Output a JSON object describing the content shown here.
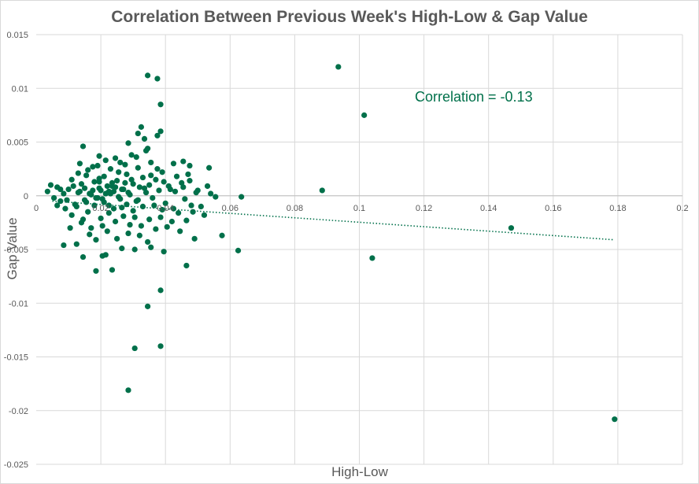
{
  "chart_data": {
    "type": "scatter",
    "title": "Correlation Between Previous Week's High-Low & Gap Value",
    "xlabel": "High-Low",
    "ylabel": "Gap Value",
    "xlim": [
      0,
      0.2
    ],
    "ylim": [
      -0.025,
      0.015
    ],
    "x_ticks": [
      0,
      0.02,
      0.04,
      0.06,
      0.08,
      0.1,
      0.12,
      0.14,
      0.16,
      0.18,
      0.2
    ],
    "y_ticks": [
      0.015,
      0.01,
      0.005,
      0,
      -0.005,
      -0.01,
      -0.015,
      -0.02,
      -0.025
    ],
    "x_tick_labels": [
      "0",
      "0.02",
      "0.04",
      "0.06",
      "0.08",
      "0.1",
      "0.12",
      "0.14",
      "0.16",
      "0.18",
      "0.2"
    ],
    "y_tick_labels": [
      "0.015",
      "0.01",
      "0.005",
      "0",
      "-0.005",
      "-0.01",
      "-0.015",
      "-0.02",
      "-0.025"
    ],
    "grid": true,
    "annotation": "Correlation = -0.13",
    "trendline": {
      "style": "dotted",
      "x": [
        0.005,
        0.179
      ],
      "y": [
        -0.0005,
        -0.0041
      ]
    },
    "marker_color": "#00704a",
    "trendline_color": "#00704a",
    "series": [
      {
        "points": [
          [
            0.0035,
            0.0004
          ],
          [
            0.0045,
            0.001
          ],
          [
            0.0055,
            -0.0002
          ],
          [
            0.0065,
            0.0008
          ],
          [
            0.0075,
            -0.0005
          ],
          [
            0.0085,
            0.0002
          ],
          [
            0.009,
            -0.0012
          ],
          [
            0.01,
            0.0006
          ],
          [
            0.011,
            -0.0018
          ],
          [
            0.011,
            0.0015
          ],
          [
            0.012,
            -0.0008
          ],
          [
            0.013,
            0.0003
          ],
          [
            0.013,
            0.0021
          ],
          [
            0.014,
            -0.0025
          ],
          [
            0.014,
            0.0011
          ],
          [
            0.015,
            -0.0004
          ],
          [
            0.015,
            0.0007
          ],
          [
            0.016,
            -0.0015
          ],
          [
            0.016,
            0.0024
          ],
          [
            0.017,
            0.0001
          ],
          [
            0.017,
            -0.003
          ],
          [
            0.018,
            0.0013
          ],
          [
            0.018,
            -0.0009
          ],
          [
            0.019,
            0.0028
          ],
          [
            0.019,
            -0.0002
          ],
          [
            0.02,
            0.0005
          ],
          [
            0.02,
            -0.0021
          ],
          [
            0.021,
            0.0018
          ],
          [
            0.021,
            -0.0006
          ],
          [
            0.022,
            0.0009
          ],
          [
            0.022,
            -0.0033
          ],
          [
            0.023,
            0.0002
          ],
          [
            0.023,
            0.0025
          ],
          [
            0.024,
            -0.0012
          ],
          [
            0.024,
            0.0004
          ],
          [
            0.025,
            -0.004
          ],
          [
            0.025,
            0.0014
          ],
          [
            0.026,
            -0.0003
          ],
          [
            0.026,
            0.0031
          ],
          [
            0.027,
            -0.0019
          ],
          [
            0.027,
            0.0006
          ],
          [
            0.028,
            -0.0008
          ],
          [
            0.028,
            0.002
          ],
          [
            0.029,
            -0.0027
          ],
          [
            0.029,
            0.0001
          ],
          [
            0.03,
            0.0011
          ],
          [
            0.03,
            -0.0014
          ],
          [
            0.031,
            0.0036
          ],
          [
            0.031,
            -0.0005
          ],
          [
            0.032,
            0.0008
          ],
          [
            0.032,
            -0.0037
          ],
          [
            0.033,
            0.0017
          ],
          [
            0.033,
            -0.001
          ],
          [
            0.034,
            0.0003
          ],
          [
            0.034,
            0.0042
          ],
          [
            0.035,
            -0.0022
          ],
          [
            0.035,
            0.001
          ],
          [
            0.036,
            -0.0002
          ],
          [
            0.037,
            0.0015
          ],
          [
            0.037,
            -0.0031
          ],
          [
            0.038,
            0.0005
          ],
          [
            0.039,
            -0.0013
          ],
          [
            0.039,
            0.0022
          ],
          [
            0.04,
            -0.0007
          ],
          [
            0.041,
            0.0009
          ],
          [
            0.042,
            -0.0024
          ],
          [
            0.043,
            0.0004
          ],
          [
            0.044,
            -0.0016
          ],
          [
            0.045,
            0.0012
          ],
          [
            0.046,
            -0.0003
          ],
          [
            0.047,
            0.002
          ],
          [
            0.048,
            -0.0009
          ],
          [
            0.05,
            0.0005
          ],
          [
            0.052,
            -0.0018
          ],
          [
            0.054,
            0.0002
          ],
          [
            0.0105,
            -0.003
          ],
          [
            0.0125,
            -0.0045
          ],
          [
            0.0135,
            0.003
          ],
          [
            0.0145,
            -0.0022
          ],
          [
            0.0155,
            0.0019
          ],
          [
            0.0165,
            -0.0036
          ],
          [
            0.0175,
            0.0027
          ],
          [
            0.0185,
            -0.0041
          ],
          [
            0.0195,
            0.0016
          ],
          [
            0.0205,
            -0.0028
          ],
          [
            0.0215,
            0.0033
          ],
          [
            0.0225,
            -0.0016
          ],
          [
            0.0235,
            0.0012
          ],
          [
            0.0245,
            -0.0024
          ],
          [
            0.0255,
            0.0022
          ],
          [
            0.0265,
            -0.0011
          ],
          [
            0.0275,
            0.0029
          ],
          [
            0.0285,
            -0.0035
          ],
          [
            0.0295,
            0.0015
          ],
          [
            0.0305,
            -0.002
          ],
          [
            0.0315,
            0.0026
          ],
          [
            0.0325,
            -0.0028
          ],
          [
            0.0335,
            0.0007
          ],
          [
            0.0345,
            -0.0043
          ],
          [
            0.0355,
            0.0019
          ],
          [
            0.0365,
            -0.0009
          ],
          [
            0.0375,
            0.0025
          ],
          [
            0.0385,
            -0.002
          ],
          [
            0.0395,
            0.0013
          ],
          [
            0.0405,
            -0.0029
          ],
          [
            0.0415,
            0.0006
          ],
          [
            0.0425,
            -0.0012
          ],
          [
            0.0435,
            0.0018
          ],
          [
            0.0445,
            -0.0033
          ],
          [
            0.0455,
            0.0008
          ],
          [
            0.0465,
            -0.0023
          ],
          [
            0.0475,
            0.0014
          ],
          [
            0.0485,
            -0.0015
          ],
          [
            0.0495,
            0.0003
          ],
          [
            0.051,
            -0.001
          ],
          [
            0.053,
            0.0009
          ],
          [
            0.049,
            -0.004
          ],
          [
            0.0425,
            0.003
          ],
          [
            0.0395,
            -0.0052
          ],
          [
            0.0355,
            -0.0048
          ],
          [
            0.0305,
            -0.005
          ],
          [
            0.0265,
            -0.0049
          ],
          [
            0.0205,
            -0.0056
          ],
          [
            0.0145,
            -0.0057
          ],
          [
            0.0085,
            -0.0046
          ],
          [
            0.0145,
            0.0046
          ],
          [
            0.0285,
            0.0049
          ],
          [
            0.0335,
            0.0053
          ],
          [
            0.0375,
            0.0056
          ],
          [
            0.0385,
            0.006
          ],
          [
            0.0315,
            0.0058
          ],
          [
            0.0325,
            0.0064
          ],
          [
            0.0345,
            0.0044
          ],
          [
            0.0355,
            0.0031
          ],
          [
            0.0295,
            0.0038
          ],
          [
            0.0245,
            0.0035
          ],
          [
            0.0195,
            0.0037
          ],
          [
            0.0185,
            -0.007
          ],
          [
            0.0235,
            -0.0069
          ],
          [
            0.0215,
            -0.0055
          ],
          [
            0.0385,
            -0.0088
          ],
          [
            0.0385,
            -0.014
          ],
          [
            0.0305,
            -0.0142
          ],
          [
            0.0345,
            -0.0103
          ],
          [
            0.0285,
            -0.0181
          ],
          [
            0.0345,
            0.0112
          ],
          [
            0.0375,
            0.0109
          ],
          [
            0.0385,
            0.0085
          ],
          [
            0.0465,
            -0.0065
          ],
          [
            0.0455,
            0.0032
          ],
          [
            0.0475,
            0.0028
          ],
          [
            0.0535,
            0.0026
          ],
          [
            0.0555,
            -0.0001
          ],
          [
            0.0575,
            -0.0037
          ],
          [
            0.0625,
            -0.0051
          ],
          [
            0.0635,
            -0.0001
          ],
          [
            0.0885,
            0.0005
          ],
          [
            0.0935,
            0.012
          ],
          [
            0.1015,
            0.0075
          ],
          [
            0.104,
            -0.0058
          ],
          [
            0.147,
            -0.003
          ],
          [
            0.179,
            -0.0208
          ],
          [
            0.0165,
            0.0002
          ],
          [
            0.0195,
            0.0007
          ],
          [
            0.0225,
            0.0004
          ],
          [
            0.0255,
            -0.0001
          ],
          [
            0.0235,
            0.0009
          ],
          [
            0.0265,
            0.0006
          ],
          [
            0.0205,
            -0.0003
          ],
          [
            0.0175,
            0.0005
          ],
          [
            0.0155,
            -0.0006
          ],
          [
            0.0285,
            0.0003
          ],
          [
            0.0315,
            -0.0004
          ],
          [
            0.0275,
            0.0012
          ],
          [
            0.0225,
            -0.0009
          ],
          [
            0.0195,
            0.0013
          ],
          [
            0.0245,
            0.0008
          ],
          [
            0.0215,
            0.0002
          ],
          [
            0.0185,
            -0.0002
          ],
          [
            0.0135,
            0.0004
          ],
          [
            0.0125,
            -0.001
          ],
          [
            0.0115,
            0.0009
          ],
          [
            0.0095,
            -0.0004
          ],
          [
            0.0075,
            0.0006
          ],
          [
            0.0065,
            -0.0009
          ]
        ]
      }
    ]
  }
}
